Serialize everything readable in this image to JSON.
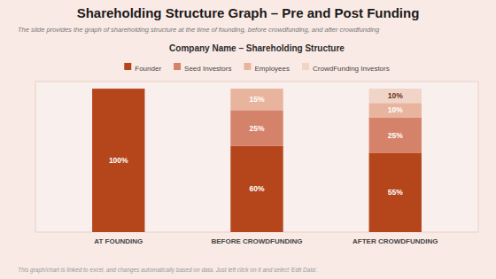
{
  "chart_data": {
    "type": "bar",
    "title": "Shareholding Structure Graph – Pre and Post Funding",
    "subtitle": "The slide provides the graph of shareholding structure at the time of founding, before crowdfunding, and after crowdfunding",
    "annotations": [
      "Company Name – Shareholding Structure",
      "This graph/chart is linked to excel, and changes automatically based on data. Just left click on it and select 'Edit Data'."
    ],
    "categories": [
      "AT FOUNDING",
      "BEFORE CROWDFUNDING",
      "AFTER CROWDFUNDING"
    ],
    "series": [
      {
        "name": "Founder",
        "color": "#b5451b",
        "values": [
          100,
          60,
          55
        ],
        "value_labels": [
          "100%",
          "60%",
          "55%"
        ]
      },
      {
        "name": "Seed Investors",
        "color": "#d4836a",
        "values": [
          0,
          25,
          25
        ],
        "value_labels": [
          null,
          "25%",
          "25%"
        ]
      },
      {
        "name": "Employees",
        "color": "#e8b49e",
        "values": [
          0,
          15,
          10
        ],
        "value_labels": [
          null,
          "15%",
          "10%"
        ]
      },
      {
        "name": "CrowdFunding Investors",
        "color": "#f0d4c8",
        "values": [
          0,
          0,
          10
        ],
        "value_labels": [
          null,
          null,
          "10%"
        ]
      }
    ],
    "stacked": true,
    "ylim": [
      0,
      105
    ],
    "tick_labels": "x",
    "grid": false,
    "legend": "top",
    "data_labels": true
  }
}
